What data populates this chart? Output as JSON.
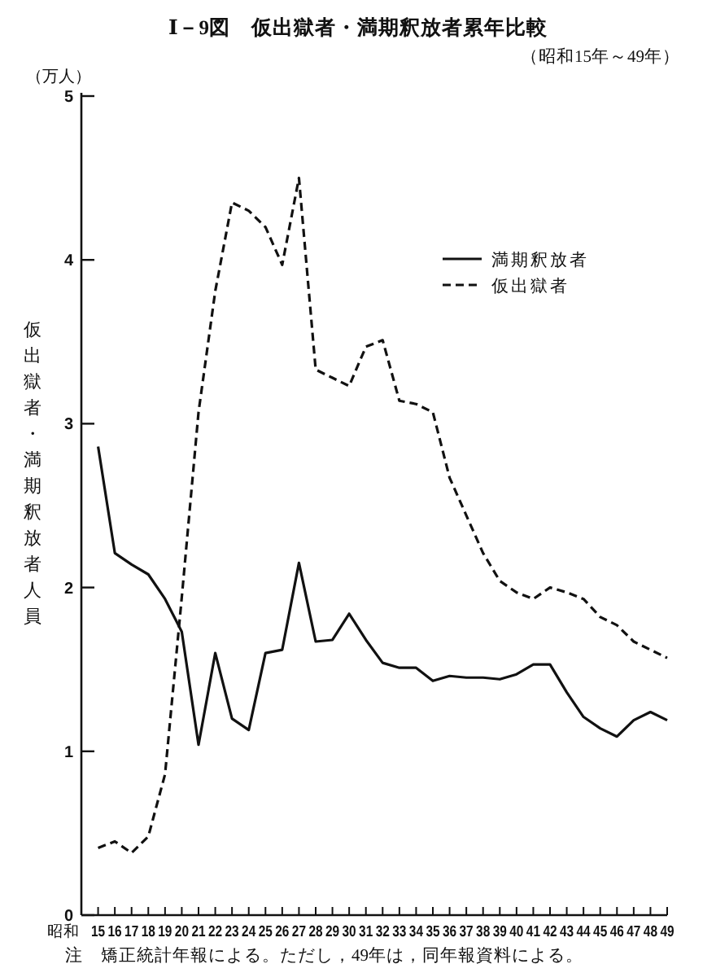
{
  "chart_data": {
    "type": "line",
    "title": "Ⅰ－9図　仮出獄者・満期釈放者累年比較",
    "subtitle": "（昭和15年～49年）",
    "xlabel": "昭和",
    "ylabel": "仮出獄者・満期釈放者人員",
    "annotations": [
      "（万人）",
      "注　矯正統計年報による。ただし，49年は，同年報資料による。"
    ],
    "categories": [
      "15",
      "16",
      "17",
      "18",
      "19",
      "20",
      "21",
      "22",
      "23",
      "24",
      "25",
      "26",
      "27",
      "28",
      "29",
      "30",
      "31",
      "32",
      "33",
      "34",
      "35",
      "36",
      "37",
      "38",
      "39",
      "40",
      "41",
      "42",
      "43",
      "44",
      "45",
      "46",
      "47",
      "48",
      "49"
    ],
    "series": [
      {
        "name": "満期釈放者",
        "color": "#111111",
        "line_style": "solid",
        "values": [
          2.86,
          2.21,
          2.14,
          2.08,
          1.93,
          1.73,
          1.04,
          1.6,
          1.2,
          1.13,
          1.6,
          1.62,
          2.15,
          1.67,
          1.68,
          1.84,
          1.68,
          1.54,
          1.51,
          1.51,
          1.43,
          1.46,
          1.45,
          1.45,
          1.44,
          1.47,
          1.53,
          1.53,
          1.36,
          1.21,
          1.14,
          1.09,
          1.19,
          1.24,
          1.19
        ]
      },
      {
        "name": "仮出獄者",
        "color": "#111111",
        "line_style": "dashed",
        "values": [
          0.41,
          0.45,
          0.38,
          0.48,
          0.86,
          1.94,
          3.07,
          3.81,
          4.35,
          4.3,
          4.2,
          3.97,
          4.5,
          3.33,
          3.28,
          3.23,
          3.47,
          3.51,
          3.14,
          3.12,
          3.07,
          2.67,
          2.44,
          2.21,
          2.04,
          1.97,
          1.93,
          2.0,
          1.97,
          1.93,
          1.82,
          1.77,
          1.67,
          1.62,
          1.57
        ]
      }
    ],
    "ylim": [
      0,
      5
    ],
    "yticks": [
      0,
      1,
      2,
      3,
      4,
      5
    ],
    "legend": "top right"
  }
}
